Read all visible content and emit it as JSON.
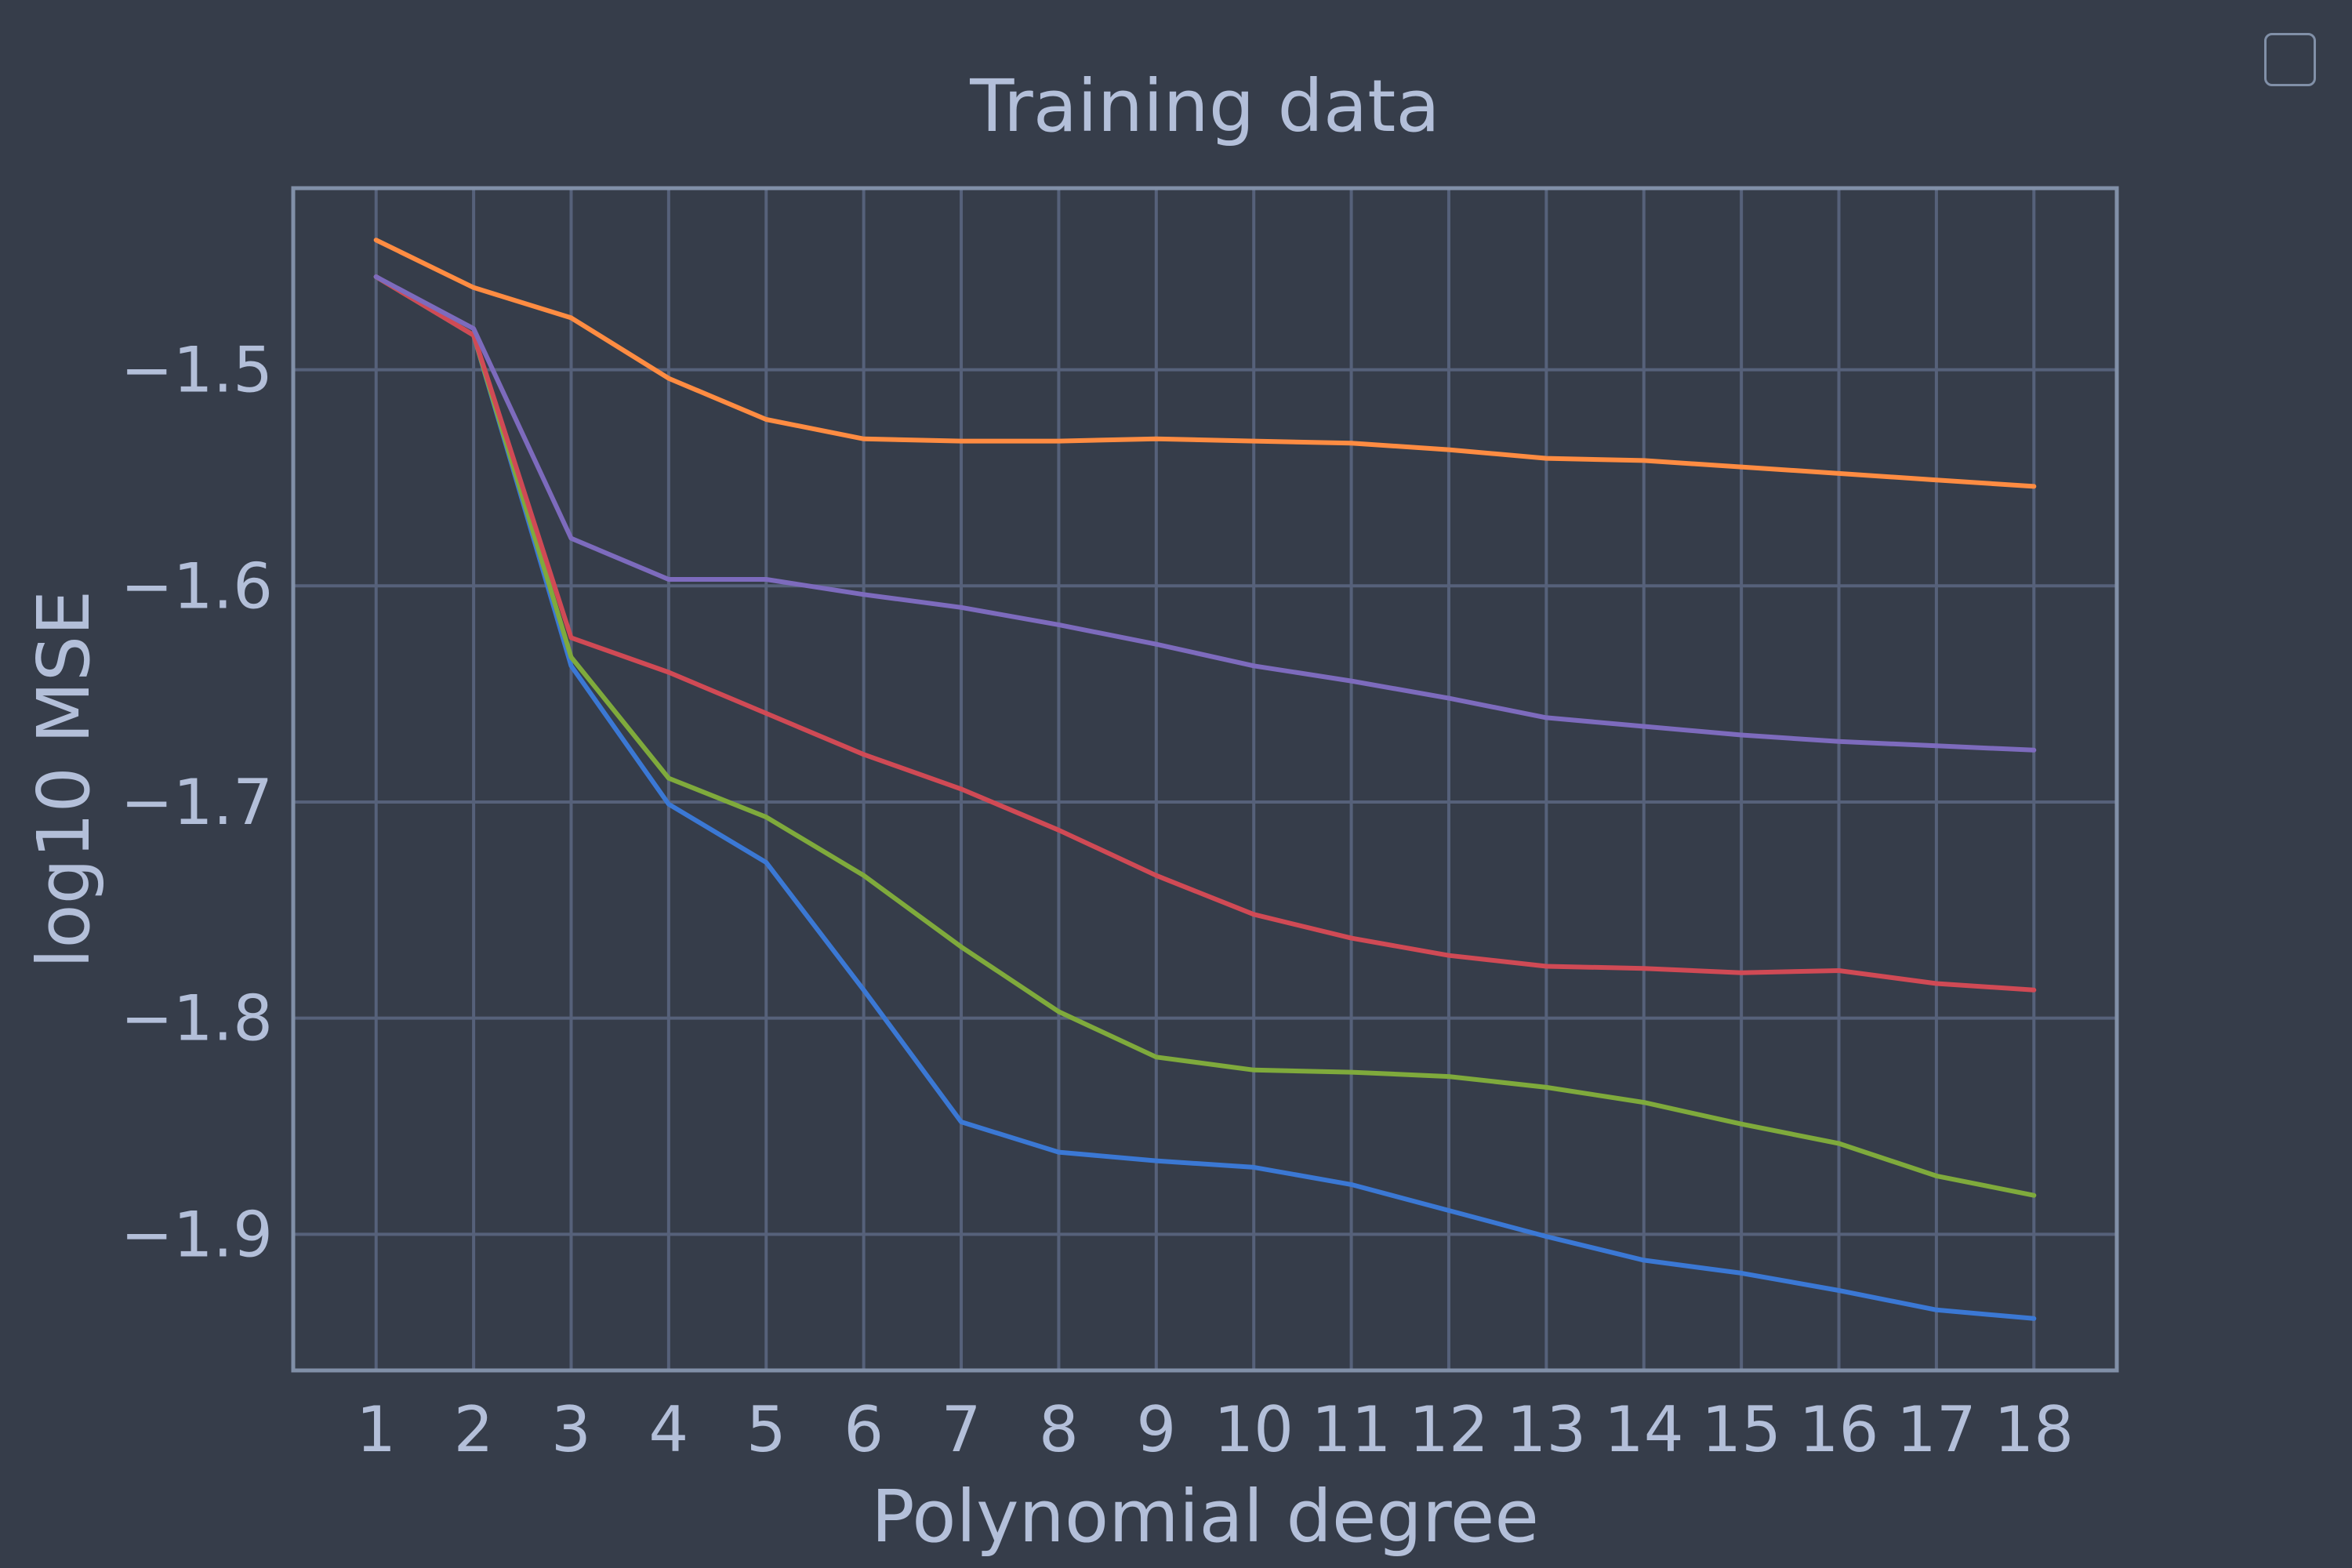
{
  "chart_data": {
    "type": "line",
    "title": "Training data",
    "xlabel": "Polynomial degree",
    "ylabel": "log10 MSE",
    "x": [
      1,
      2,
      3,
      4,
      5,
      6,
      7,
      8,
      9,
      10,
      11,
      12,
      13,
      14,
      15,
      16,
      17,
      18
    ],
    "xticks": [
      "1",
      "2",
      "3",
      "4",
      "5",
      "6",
      "7",
      "8",
      "9",
      "10",
      "11",
      "12",
      "13",
      "14",
      "15",
      "16",
      "17",
      "18"
    ],
    "yticks": [
      {
        "value": -1.5,
        "label": "−1.5"
      },
      {
        "value": -1.6,
        "label": "−1.6"
      },
      {
        "value": -1.7,
        "label": "−1.7"
      },
      {
        "value": -1.8,
        "label": "−1.8"
      },
      {
        "value": -1.9,
        "label": "−1.9"
      }
    ],
    "xlim": [
      0.15,
      18.85
    ],
    "ylim": [
      -1.963,
      -1.416
    ],
    "grid": true,
    "legend": "top-right",
    "series": [
      {
        "color": "#ff8c42",
        "values": [
          -1.44,
          -1.462,
          -1.476,
          -1.504,
          -1.523,
          -1.532,
          -1.533,
          -1.533,
          -1.532,
          -1.533,
          -1.534,
          -1.537,
          -1.541,
          -1.542,
          -1.545,
          -1.548,
          -1.551,
          -1.554
        ]
      },
      {
        "color": "#7d6bbd",
        "values": [
          -1.457,
          -1.481,
          -1.578,
          -1.597,
          -1.597,
          -1.604,
          -1.61,
          -1.618,
          -1.627,
          -1.637,
          -1.644,
          -1.652,
          -1.661,
          -1.665,
          -1.669,
          -1.672,
          -1.674,
          -1.676
        ]
      },
      {
        "color": "#d04a55",
        "values": [
          -1.457,
          -1.484,
          -1.624,
          -1.64,
          -1.659,
          -1.678,
          -1.694,
          -1.713,
          -1.734,
          -1.752,
          -1.763,
          -1.771,
          -1.776,
          -1.777,
          -1.779,
          -1.778,
          -1.784,
          -1.787
        ]
      },
      {
        "color": "#7faa3c",
        "values": [
          -1.457,
          -1.484,
          -1.633,
          -1.689,
          -1.707,
          -1.734,
          -1.767,
          -1.797,
          -1.818,
          -1.824,
          -1.825,
          -1.827,
          -1.832,
          -1.839,
          -1.849,
          -1.858,
          -1.873,
          -1.882
        ]
      },
      {
        "color": "#3b78d4",
        "values": [
          -1.457,
          -1.484,
          -1.637,
          -1.701,
          -1.728,
          -1.787,
          -1.848,
          -1.862,
          -1.866,
          -1.869,
          -1.877,
          -1.889,
          -1.901,
          -1.912,
          -1.918,
          -1.926,
          -1.935,
          -1.939
        ]
      }
    ]
  },
  "colors": {
    "background": "#363d4a",
    "frame": "#8190a8",
    "grid": "#56617a",
    "text": "#b3bfd9"
  }
}
